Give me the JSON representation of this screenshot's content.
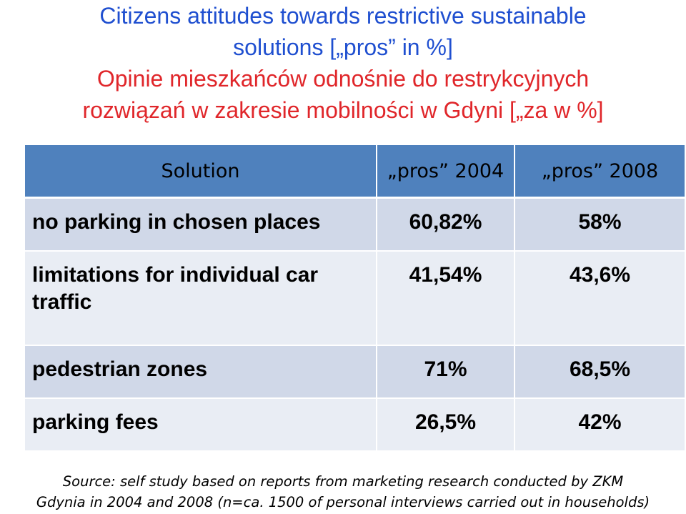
{
  "title": {
    "en_line1": "Citizens attitudes towards restrictive sustainable",
    "en_line2": "solutions [„pros” in %]",
    "pl_line1": "Opinie mieszkańców odnośnie do restrykcyjnych",
    "pl_line2": "rozwiązań w zakresie mobilności w Gdyni [„za w %]"
  },
  "table": {
    "headers": [
      "Solution",
      "„pros” 2004",
      "„pros” 2008"
    ],
    "rows": [
      {
        "solution": "no parking in chosen places",
        "pros_2004": "60,82%",
        "pros_2008": "58%"
      },
      {
        "solution": "limitations for individual car traffic",
        "pros_2004": "41,54%",
        "pros_2008": "43,6%"
      },
      {
        "solution": "pedestrian zones",
        "pros_2004": "71%",
        "pros_2008": "68,5%"
      },
      {
        "solution": "parking fees",
        "pros_2004": "26,5%",
        "pros_2008": "42%"
      }
    ]
  },
  "source": {
    "line1": "Source: self study based on reports from marketing research conducted by ZKM",
    "line2": "Gdynia in 2004 and 2008 (n=ca. 1500 of personal interviews carried out in households)"
  },
  "colors": {
    "title_en": "#1f4fd0",
    "title_pl": "#e0262a",
    "header_bg": "#4f81bd",
    "row_dark": "#d0d8e8",
    "row_light": "#e9edf4"
  }
}
